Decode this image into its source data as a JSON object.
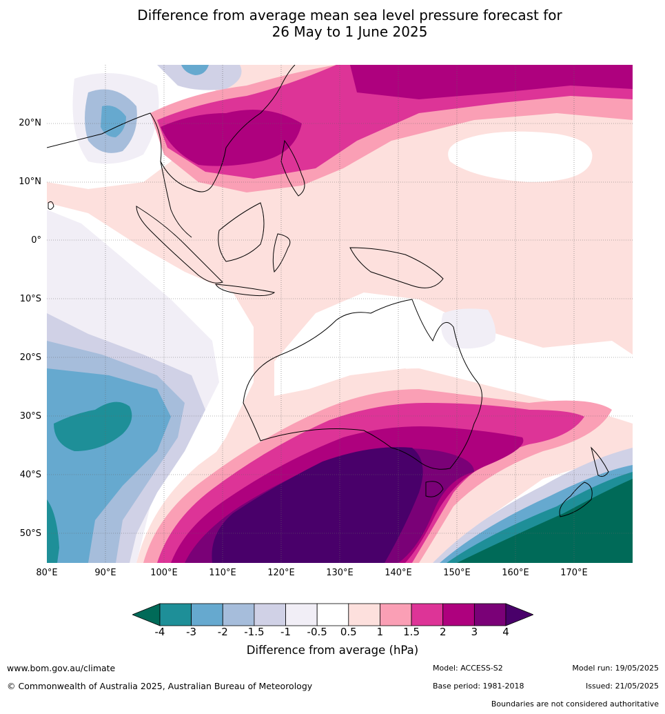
{
  "title": {
    "line1": "Difference from average mean sea level pressure forecast for",
    "line2": "26 May to 1 June 2025"
  },
  "axes": {
    "lat_labels": [
      "20°N",
      "10°N",
      "0°",
      "10°S",
      "20°S",
      "30°S",
      "40°S",
      "50°S"
    ],
    "lon_labels": [
      "80°E",
      "90°E",
      "100°E",
      "110°E",
      "120°E",
      "130°E",
      "140°E",
      "150°E",
      "160°E",
      "170°E"
    ]
  },
  "colorbar": {
    "tick_labels": [
      "-4",
      "-3",
      "-2",
      "-1.5",
      "-1",
      "-0.5",
      "0.5",
      "1",
      "1.5",
      "2",
      "3",
      "4"
    ],
    "colors": {
      "below_min": "#006a58",
      "bins": [
        "#1e8f98",
        "#66a9cf",
        "#a6bddb",
        "#d0d1e6",
        "#f1eef6",
        "#ffffff",
        "#fde0dd",
        "#fa9fb5",
        "#dd3497",
        "#ae017e",
        "#7a0177"
      ],
      "above_max": "#49006a"
    },
    "label": "Difference from average (hPa)"
  },
  "footer": {
    "website": "www.bom.gov.au/climate",
    "copyright": "© Commonwealth of Australia 2025, Australian Bureau of Meteorology",
    "model": "Model: ACCESS-S2",
    "model_run": "Model run: 19/05/2025",
    "base_period": "Base period: 1981-2018",
    "issued": "Issued: 21/05/2025",
    "disclaimer": "Boundaries are not considered authoritative"
  }
}
